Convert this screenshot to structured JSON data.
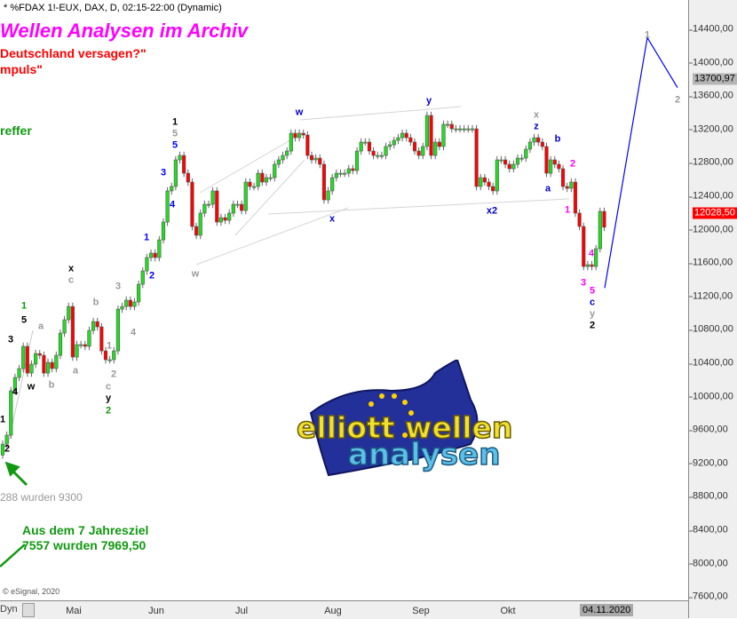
{
  "header": {
    "symbol_line": "* %FDAX 1!-EUX, DAX, D, 02:15-22:00 (Dynamic)"
  },
  "overlay_text": {
    "title": "Wellen Analysen im Archiv",
    "red_line_1": "Deutschland versagen?\"",
    "red_line_2": "mpuls\"",
    "green_fragment": "reffer",
    "gray_note": "288 wurden 9300",
    "green_note_1": "Aus dem 7 Jahresziel",
    "green_note_2": "7557 wurden 7969,50",
    "copyright": "© eSignal, 2020"
  },
  "logo": {
    "line1": "elliott wellen",
    "line2": "analysen"
  },
  "colors": {
    "up": "#22dd22",
    "down": "#ff0000",
    "wick": "#666666",
    "projection": "#0000ff",
    "title": "#ff00ff",
    "accent_green": "#119911"
  },
  "bottom_bar": {
    "dyn_label": "Dyn",
    "lock_icon": "lock-icon"
  },
  "chart_data": {
    "type": "candlestick",
    "title": "",
    "instrument": "%FDAX 1!-EUX",
    "x_ticks": [
      "Mai",
      "Jun",
      "Jul",
      "Aug",
      "Sep",
      "Okt"
    ],
    "current_date": "04.11.2020",
    "y_ticks": [
      "14400,00",
      "14000,00",
      "13600,00",
      "13200,00",
      "12800,00",
      "12400,00",
      "12000,00",
      "11600,00",
      "11200,00",
      "10800,00",
      "10400,00",
      "10000,00",
      "9600,00",
      "9200,00",
      "8800,00",
      "8400,00",
      "8000,00",
      "7600,00"
    ],
    "ylim": [
      7600,
      14400
    ],
    "price_badges": [
      {
        "label": "13700,97",
        "value": 13700.97,
        "style": "gray"
      },
      {
        "label": "12028,50",
        "value": 12028.5,
        "style": "red"
      }
    ],
    "first_open": 9300,
    "closes": [
      9431,
      9538,
      10070,
      10229,
      10336,
      10602,
      10282,
      10389,
      10516,
      10495,
      10282,
      10410,
      10336,
      10495,
      10761,
      10921,
      11080,
      10474,
      10623,
      10623,
      10602,
      10793,
      10899,
      10836,
      10548,
      10442,
      10442,
      10548,
      11048,
      11080,
      11155,
      11080,
      11134,
      11346,
      11506,
      11666,
      11719,
      11666,
      11878,
      12091,
      12464,
      12517,
      12836,
      12889,
      12676,
      12570,
      12038,
      11932,
      12198,
      12304,
      12304,
      12464,
      12091,
      12144,
      12112,
      12198,
      12304,
      12304,
      12229,
      12570,
      12517,
      12517,
      12676,
      12570,
      12623,
      12623,
      12783,
      12836,
      12889,
      12942,
      13155,
      13102,
      13155,
      13134,
      12889,
      12836,
      12857,
      12783,
      12357,
      12464,
      12623,
      12676,
      12676,
      12676,
      12730,
      12708,
      12942,
      13049,
      13049,
      12942,
      12889,
      12889,
      12889,
      12996,
      13017,
      13070,
      13102,
      13155,
      13102,
      13049,
      12942,
      12889,
      12996,
      13368,
      12889,
      13049,
      12996,
      13262,
      13262,
      13208,
      13208,
      13208,
      13208,
      13208,
      13208,
      12517,
      12623,
      12570,
      12517,
      12464,
      12836,
      12836,
      12783,
      12730,
      12783,
      12857,
      12857,
      12964,
      13049,
      13102,
      13049,
      12996,
      12676,
      12836,
      12783,
      12730,
      12517,
      12495,
      12570,
      12198,
      12038,
      11559,
      11580,
      11559,
      11772,
      12219,
      12028.5
    ],
    "wave_labels": [
      {
        "text": "1",
        "color": "#119911"
      },
      {
        "text": "5",
        "color": "#000000"
      },
      {
        "text": "3",
        "color": "#000000"
      },
      {
        "text": "4",
        "color": "#000000"
      },
      {
        "text": "1",
        "color": "#000000"
      },
      {
        "text": "2",
        "color": "#000000"
      },
      {
        "text": "w",
        "color": "#000000"
      },
      {
        "text": "a",
        "color": "#999999"
      },
      {
        "text": "b",
        "color": "#999999"
      },
      {
        "text": "x",
        "color": "#000000"
      },
      {
        "text": "c",
        "color": "#999999"
      },
      {
        "text": "a",
        "color": "#999999"
      },
      {
        "text": "b",
        "color": "#999999"
      },
      {
        "text": "1",
        "color": "#999999"
      },
      {
        "text": "2",
        "color": "#999999"
      },
      {
        "text": "c",
        "color": "#999999"
      },
      {
        "text": "y",
        "color": "#000000"
      },
      {
        "text": "2",
        "color": "#119911"
      },
      {
        "text": "3",
        "color": "#999999"
      },
      {
        "text": "4",
        "color": "#999999"
      },
      {
        "text": "1",
        "color": "#0000ff"
      },
      {
        "text": "2",
        "color": "#0000ff"
      },
      {
        "text": "3",
        "color": "#0000ff"
      },
      {
        "text": "4",
        "color": "#0000ff"
      },
      {
        "text": "1",
        "color": "#000000"
      },
      {
        "text": "5",
        "color": "#999999"
      },
      {
        "text": "5",
        "color": "#0000ff"
      },
      {
        "text": "w",
        "color": "#999999"
      },
      {
        "text": "w",
        "color": "#0000cc"
      },
      {
        "text": "x",
        "color": "#0000cc"
      },
      {
        "text": "y",
        "color": "#0000cc"
      },
      {
        "text": "x2",
        "color": "#0000cc"
      },
      {
        "text": "x",
        "color": "#999999"
      },
      {
        "text": "z",
        "color": "#0000cc"
      },
      {
        "text": "b",
        "color": "#0000cc"
      },
      {
        "text": "a",
        "color": "#0000cc"
      },
      {
        "text": "2",
        "color": "#ff00ff"
      },
      {
        "text": "1",
        "color": "#ff00ff"
      },
      {
        "text": "3",
        "color": "#ff00ff"
      },
      {
        "text": "4",
        "color": "#ff00ff"
      },
      {
        "text": "5",
        "color": "#ff00ff"
      },
      {
        "text": "c",
        "color": "#0000cc"
      },
      {
        "text": "y",
        "color": "#999999"
      },
      {
        "text": "2",
        "color": "#000000"
      },
      {
        "text": "1",
        "color": "#999999"
      },
      {
        "text": "2",
        "color": "#999999"
      }
    ],
    "projection": [
      {
        "label": "",
        "value": 11300
      },
      {
        "label": "1",
        "value": 14300
      },
      {
        "label": "2",
        "value": 13700.97
      }
    ]
  }
}
